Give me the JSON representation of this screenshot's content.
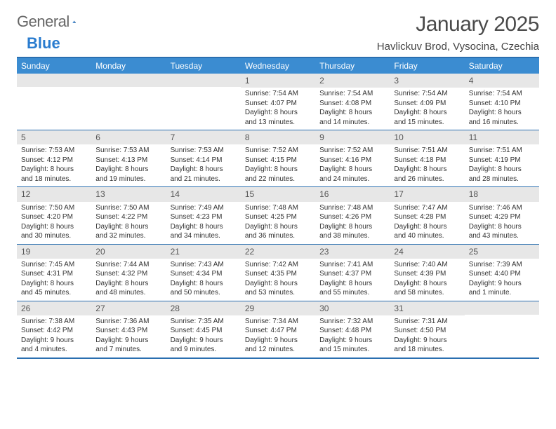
{
  "logo": {
    "word1": "General",
    "word2": "Blue"
  },
  "title": "January 2025",
  "location": "Havlickuv Brod, Vysocina, Czechia",
  "colors": {
    "header_bg": "#3b8cd1",
    "border": "#2a6fb0",
    "daynum_bg": "#e7e7e7",
    "logo_blue": "#2a7ccf"
  },
  "weekdays": [
    "Sunday",
    "Monday",
    "Tuesday",
    "Wednesday",
    "Thursday",
    "Friday",
    "Saturday"
  ],
  "weeks": [
    [
      {
        "empty": true
      },
      {
        "empty": true
      },
      {
        "empty": true
      },
      {
        "num": "1",
        "sunrise": "7:54 AM",
        "sunset": "4:07 PM",
        "daylight": "8 hours and 13 minutes."
      },
      {
        "num": "2",
        "sunrise": "7:54 AM",
        "sunset": "4:08 PM",
        "daylight": "8 hours and 14 minutes."
      },
      {
        "num": "3",
        "sunrise": "7:54 AM",
        "sunset": "4:09 PM",
        "daylight": "8 hours and 15 minutes."
      },
      {
        "num": "4",
        "sunrise": "7:54 AM",
        "sunset": "4:10 PM",
        "daylight": "8 hours and 16 minutes."
      }
    ],
    [
      {
        "num": "5",
        "sunrise": "7:53 AM",
        "sunset": "4:12 PM",
        "daylight": "8 hours and 18 minutes."
      },
      {
        "num": "6",
        "sunrise": "7:53 AM",
        "sunset": "4:13 PM",
        "daylight": "8 hours and 19 minutes."
      },
      {
        "num": "7",
        "sunrise": "7:53 AM",
        "sunset": "4:14 PM",
        "daylight": "8 hours and 21 minutes."
      },
      {
        "num": "8",
        "sunrise": "7:52 AM",
        "sunset": "4:15 PM",
        "daylight": "8 hours and 22 minutes."
      },
      {
        "num": "9",
        "sunrise": "7:52 AM",
        "sunset": "4:16 PM",
        "daylight": "8 hours and 24 minutes."
      },
      {
        "num": "10",
        "sunrise": "7:51 AM",
        "sunset": "4:18 PM",
        "daylight": "8 hours and 26 minutes."
      },
      {
        "num": "11",
        "sunrise": "7:51 AM",
        "sunset": "4:19 PM",
        "daylight": "8 hours and 28 minutes."
      }
    ],
    [
      {
        "num": "12",
        "sunrise": "7:50 AM",
        "sunset": "4:20 PM",
        "daylight": "8 hours and 30 minutes."
      },
      {
        "num": "13",
        "sunrise": "7:50 AM",
        "sunset": "4:22 PM",
        "daylight": "8 hours and 32 minutes."
      },
      {
        "num": "14",
        "sunrise": "7:49 AM",
        "sunset": "4:23 PM",
        "daylight": "8 hours and 34 minutes."
      },
      {
        "num": "15",
        "sunrise": "7:48 AM",
        "sunset": "4:25 PM",
        "daylight": "8 hours and 36 minutes."
      },
      {
        "num": "16",
        "sunrise": "7:48 AM",
        "sunset": "4:26 PM",
        "daylight": "8 hours and 38 minutes."
      },
      {
        "num": "17",
        "sunrise": "7:47 AM",
        "sunset": "4:28 PM",
        "daylight": "8 hours and 40 minutes."
      },
      {
        "num": "18",
        "sunrise": "7:46 AM",
        "sunset": "4:29 PM",
        "daylight": "8 hours and 43 minutes."
      }
    ],
    [
      {
        "num": "19",
        "sunrise": "7:45 AM",
        "sunset": "4:31 PM",
        "daylight": "8 hours and 45 minutes."
      },
      {
        "num": "20",
        "sunrise": "7:44 AM",
        "sunset": "4:32 PM",
        "daylight": "8 hours and 48 minutes."
      },
      {
        "num": "21",
        "sunrise": "7:43 AM",
        "sunset": "4:34 PM",
        "daylight": "8 hours and 50 minutes."
      },
      {
        "num": "22",
        "sunrise": "7:42 AM",
        "sunset": "4:35 PM",
        "daylight": "8 hours and 53 minutes."
      },
      {
        "num": "23",
        "sunrise": "7:41 AM",
        "sunset": "4:37 PM",
        "daylight": "8 hours and 55 minutes."
      },
      {
        "num": "24",
        "sunrise": "7:40 AM",
        "sunset": "4:39 PM",
        "daylight": "8 hours and 58 minutes."
      },
      {
        "num": "25",
        "sunrise": "7:39 AM",
        "sunset": "4:40 PM",
        "daylight": "9 hours and 1 minute."
      }
    ],
    [
      {
        "num": "26",
        "sunrise": "7:38 AM",
        "sunset": "4:42 PM",
        "daylight": "9 hours and 4 minutes."
      },
      {
        "num": "27",
        "sunrise": "7:36 AM",
        "sunset": "4:43 PM",
        "daylight": "9 hours and 7 minutes."
      },
      {
        "num": "28",
        "sunrise": "7:35 AM",
        "sunset": "4:45 PM",
        "daylight": "9 hours and 9 minutes."
      },
      {
        "num": "29",
        "sunrise": "7:34 AM",
        "sunset": "4:47 PM",
        "daylight": "9 hours and 12 minutes."
      },
      {
        "num": "30",
        "sunrise": "7:32 AM",
        "sunset": "4:48 PM",
        "daylight": "9 hours and 15 minutes."
      },
      {
        "num": "31",
        "sunrise": "7:31 AM",
        "sunset": "4:50 PM",
        "daylight": "9 hours and 18 minutes."
      },
      {
        "empty": true
      }
    ]
  ]
}
